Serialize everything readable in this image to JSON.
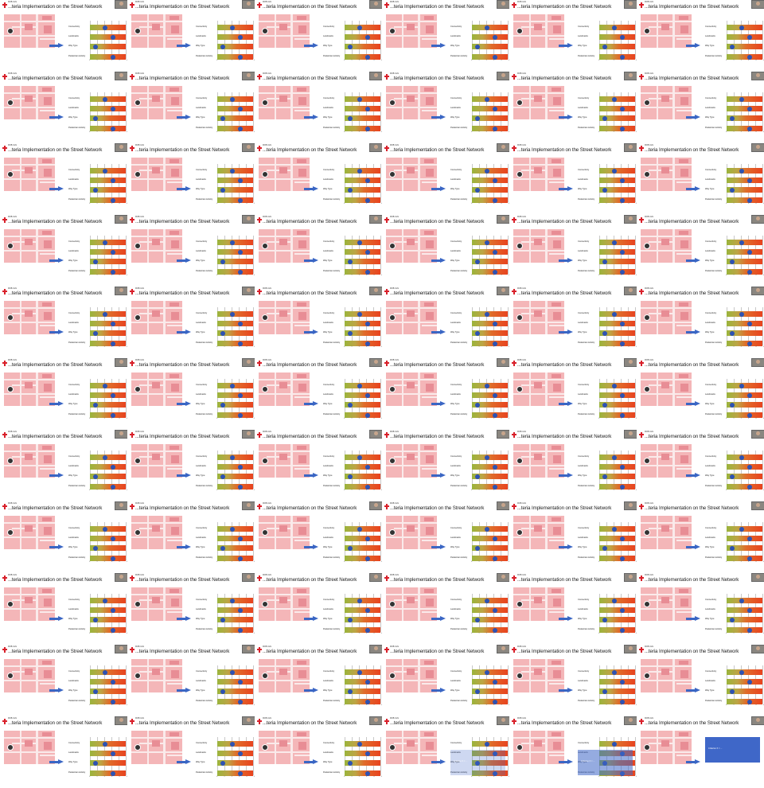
{
  "slide": {
    "title": "...teria Implementation on the Street Network",
    "subtitle": "ROB UoS",
    "criteria": [
      "Connectivity",
      "Landmarks",
      "Way Type",
      "Pedestrian Activity"
    ],
    "ticks": [
      "0",
      "1",
      "2",
      "3",
      "4",
      "5"
    ],
    "formula_label": "Criterion X = ... ",
    "colors": {
      "map": "#f4b6b8",
      "arrow": "#3a66c4",
      "dot": "#2e52b2",
      "panel": "#3f67c8",
      "logo": "#d8202a"
    }
  },
  "frames": [
    {
      "dots": [
        0.4,
        0.65,
        0.1,
        0.65
      ]
    },
    {
      "dots": [
        0.4,
        0.65,
        0.1,
        0.65
      ]
    },
    {
      "dots": [
        0.4,
        0.65,
        0.1,
        0.65
      ]
    },
    {
      "dots": [
        0.4,
        0.65,
        0.1,
        0.65
      ]
    },
    {
      "dots": [
        0.4,
        0.65,
        0.1,
        0.65
      ]
    },
    {
      "dots": [
        0.4,
        0.65,
        0.1,
        0.65
      ]
    },
    {
      "dots": [
        0.4,
        0.65,
        0.1,
        0.65
      ]
    },
    {
      "dots": [
        0.4,
        0.65,
        0.1,
        0.65
      ]
    },
    {
      "dots": [
        0.4,
        0.65,
        0.1,
        0.65
      ]
    },
    {
      "dots": [
        0.4,
        0.65,
        0.1,
        0.65
      ]
    },
    {
      "dots": [
        0.4,
        0.65,
        0.1,
        0.65
      ]
    },
    {
      "dots": [
        0.4,
        0.65,
        0.1,
        0.65
      ]
    },
    {
      "dots": [
        0.4,
        0.65,
        0.1,
        0.65
      ]
    },
    {
      "dots": [
        0.4,
        0.65,
        0.1,
        0.65
      ]
    },
    {
      "dots": [
        0.4,
        0.65,
        0.1,
        0.65
      ]
    },
    {
      "dots": [
        0.4,
        0.65,
        0.1,
        0.65
      ]
    },
    {
      "dots": [
        0.4,
        0.65,
        0.1,
        0.65
      ]
    },
    {
      "dots": [
        0.4,
        0.65,
        0.1,
        0.65
      ]
    },
    {
      "dots": [
        0.4,
        0.65,
        0.1,
        0.65
      ]
    },
    {
      "dots": [
        0.4,
        0.65,
        0.1,
        0.65
      ]
    },
    {
      "dots": [
        0.4,
        0.65,
        0.1,
        0.65
      ]
    },
    {
      "dots": [
        0.4,
        0.65,
        0.1,
        0.65
      ]
    },
    {
      "dots": [
        0.4,
        0.65,
        0.1,
        0.65
      ]
    },
    {
      "dots": [
        0.4,
        0.65,
        0.1,
        0.65
      ]
    },
    {
      "dots": [
        0.4,
        0.65,
        0.1,
        0.65
      ]
    },
    {
      "dots": [
        0.4,
        0.65,
        0.1,
        0.65
      ]
    },
    {
      "dots": [
        0.4,
        0.65,
        0.1,
        0.65
      ]
    },
    {
      "dots": [
        0.4,
        0.65,
        0.1,
        0.65
      ]
    },
    {
      "dots": [
        0.4,
        0.65,
        0.1,
        0.65
      ]
    },
    {
      "dots": [
        0.4,
        0.65,
        0.1,
        0.65
      ]
    },
    {
      "dots": [
        0.4,
        0.65,
        0.1,
        0.65
      ]
    },
    {
      "dots": [
        0.4,
        0.65,
        0.1,
        0.65
      ]
    },
    {
      "dots": [
        0.4,
        0.65,
        0.1,
        0.65
      ]
    },
    {
      "dots": [
        0.4,
        0.65,
        0.1,
        0.65
      ]
    },
    {
      "dots": [
        0.4,
        0.65,
        0.1,
        0.65
      ]
    },
    {
      "dots": [
        0.4,
        0.65,
        0.1,
        0.65
      ]
    },
    {
      "dots": [
        0.4,
        0.65,
        0.1,
        0.65
      ]
    },
    {
      "dots": [
        0.4,
        0.65,
        0.1,
        0.65
      ]
    },
    {
      "dots": [
        0.4,
        0.65,
        0.1,
        0.65
      ]
    },
    {
      "dots": [
        0.4,
        0.65,
        0.1,
        0.65
      ]
    },
    {
      "dots": [
        0.4,
        0.65,
        0.1,
        0.65
      ]
    },
    {
      "dots": [
        0.4,
        0.65,
        0.1,
        0.65
      ]
    },
    {
      "dots": [
        0.4,
        0.65,
        0.1,
        0.65
      ]
    },
    {
      "dots": [
        0.4,
        0.65,
        0.1,
        0.65
      ]
    },
    {
      "dots": [
        0.4,
        0.65,
        0.1,
        0.65
      ]
    },
    {
      "dots": [
        0.4,
        0.65,
        0.1,
        0.65
      ]
    },
    {
      "dots": [
        0.4,
        0.65,
        0.1,
        0.65
      ]
    },
    {
      "dots": [
        0.4,
        0.65,
        0.1,
        0.65
      ]
    },
    {
      "dots": [
        0.4,
        0.65,
        0.1,
        0.65
      ]
    },
    {
      "dots": [
        0.4,
        0.65,
        0.1,
        0.65
      ]
    },
    {
      "dots": [
        0.4,
        0.65,
        0.1,
        0.65
      ]
    },
    {
      "dots": [
        0.4,
        0.65,
        0.1,
        0.65
      ]
    },
    {
      "dots": [
        0.4,
        0.65,
        0.1,
        0.65
      ]
    },
    {
      "dots": [
        0.4,
        0.65,
        0.1,
        0.65
      ]
    },
    {
      "dots": [
        0.4,
        0.65,
        0.1,
        0.65
      ]
    },
    {
      "dots": [
        0.4,
        0.65,
        0.1,
        0.65
      ]
    },
    {
      "dots": [
        0.4,
        0.65,
        0.1,
        0.65
      ]
    },
    {
      "dots": [
        0.4,
        0.65,
        0.1,
        0.65
      ]
    },
    {
      "dots": [
        0.4,
        0.65,
        0.1,
        0.65
      ]
    },
    {
      "dots": [
        0.4,
        0.65,
        0.1,
        0.65
      ]
    },
    {
      "dots": [
        0.4,
        0.65,
        0.1,
        0.65
      ]
    },
    {
      "dots": [
        0.4,
        0.65,
        0.1,
        0.65
      ]
    },
    {
      "dots": [
        0.4,
        0.65,
        0.1,
        0.65
      ]
    },
    {
      "dots": [
        0.4,
        0.65,
        0.1,
        0.65
      ],
      "formula": true,
      "fade": 0.25
    },
    {
      "dots": [
        0.4,
        0.65,
        0.1,
        0.65
      ],
      "formula": true,
      "fade": 0.55
    },
    {
      "formula": true
    },
    {
      "formula": true
    },
    {
      "formula": true
    },
    {
      "formula": true
    },
    {
      "formula": true
    },
    {
      "formula": true
    },
    {
      "formula": true
    }
  ]
}
